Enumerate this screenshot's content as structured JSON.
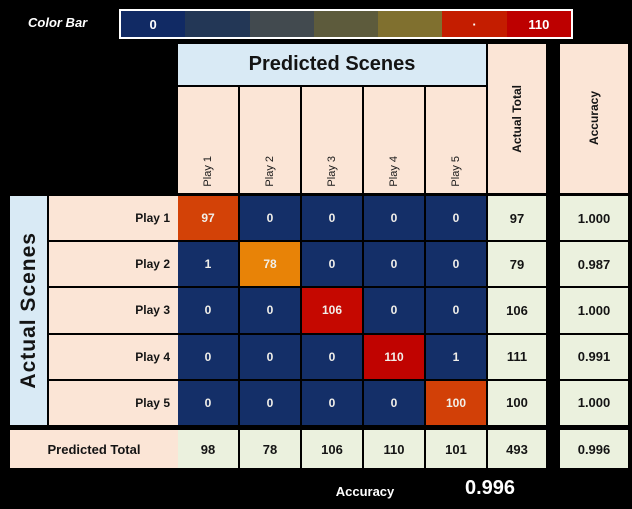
{
  "colorbar": {
    "label": "Color Bar",
    "min": "0",
    "mid_dot": "·",
    "max": "110",
    "segments": [
      "#112a64",
      "#233756",
      "#424a4f",
      "#5d5b3c",
      "#80702f",
      "#c41d00",
      "#bd0000"
    ]
  },
  "headers": {
    "predicted": "Predicted Scenes",
    "actual": "Actual Scenes",
    "actual_total": "Actual Total",
    "accuracy": "Accuracy"
  },
  "matrix": {
    "col_labels": [
      "Play 1",
      "Play 2",
      "Play 3",
      "Play 4",
      "Play 5"
    ],
    "row_labels": [
      "Play 1",
      "Play 2",
      "Play 3",
      "Play 4",
      "Play 5"
    ],
    "cells": [
      [
        {
          "v": "97",
          "bg": "#d34207"
        },
        {
          "v": "0",
          "bg": "#142f68"
        },
        {
          "v": "0",
          "bg": "#142f68"
        },
        {
          "v": "0",
          "bg": "#142f68"
        },
        {
          "v": "0",
          "bg": "#142f68"
        }
      ],
      [
        {
          "v": "1",
          "bg": "#142f68"
        },
        {
          "v": "78",
          "bg": "#e88307"
        },
        {
          "v": "0",
          "bg": "#142f68"
        },
        {
          "v": "0",
          "bg": "#142f68"
        },
        {
          "v": "0",
          "bg": "#142f68"
        }
      ],
      [
        {
          "v": "0",
          "bg": "#142f68"
        },
        {
          "v": "0",
          "bg": "#142f68"
        },
        {
          "v": "106",
          "bg": "#c50800"
        },
        {
          "v": "0",
          "bg": "#142f68"
        },
        {
          "v": "0",
          "bg": "#142f68"
        }
      ],
      [
        {
          "v": "0",
          "bg": "#142f68"
        },
        {
          "v": "0",
          "bg": "#142f68"
        },
        {
          "v": "0",
          "bg": "#142f68"
        },
        {
          "v": "110",
          "bg": "#c00300"
        },
        {
          "v": "1",
          "bg": "#142f68"
        }
      ],
      [
        {
          "v": "0",
          "bg": "#142f68"
        },
        {
          "v": "0",
          "bg": "#142f68"
        },
        {
          "v": "0",
          "bg": "#142f68"
        },
        {
          "v": "0",
          "bg": "#142f68"
        },
        {
          "v": "100",
          "bg": "#d24007"
        }
      ]
    ],
    "actual_totals": [
      "97",
      "79",
      "106",
      "111",
      "100"
    ],
    "row_accuracy": [
      "1.000",
      "0.987",
      "1.000",
      "0.991",
      "1.000"
    ]
  },
  "totals": {
    "predicted_total_label": "Predicted Total",
    "predicted_totals": [
      "98",
      "78",
      "106",
      "110",
      "101"
    ],
    "grand_total": "493",
    "overall_accuracy_cell": "0.996"
  },
  "footer": {
    "accuracy_label": "Accuracy",
    "accuracy_value": "0.996"
  },
  "chart_data": {
    "type": "heatmap",
    "title": "Confusion matrix: Predicted Scenes vs Actual Scenes",
    "x_categories": [
      "Play 1",
      "Play 2",
      "Play 3",
      "Play 4",
      "Play 5"
    ],
    "y_categories": [
      "Play 1",
      "Play 2",
      "Play 3",
      "Play 4",
      "Play 5"
    ],
    "values": [
      [
        97,
        0,
        0,
        0,
        0
      ],
      [
        1,
        78,
        0,
        0,
        0
      ],
      [
        0,
        0,
        106,
        0,
        0
      ],
      [
        0,
        0,
        0,
        110,
        1
      ],
      [
        0,
        0,
        0,
        0,
        100
      ]
    ],
    "actual_totals": [
      97,
      79,
      106,
      111,
      100
    ],
    "row_accuracy": [
      1.0,
      0.987,
      1.0,
      0.991,
      1.0
    ],
    "predicted_totals": [
      98,
      78,
      106,
      110,
      101
    ],
    "grand_total": 493,
    "overall_accuracy": 0.996,
    "colorbar_range": [
      0,
      110
    ],
    "legend_position": "top"
  }
}
